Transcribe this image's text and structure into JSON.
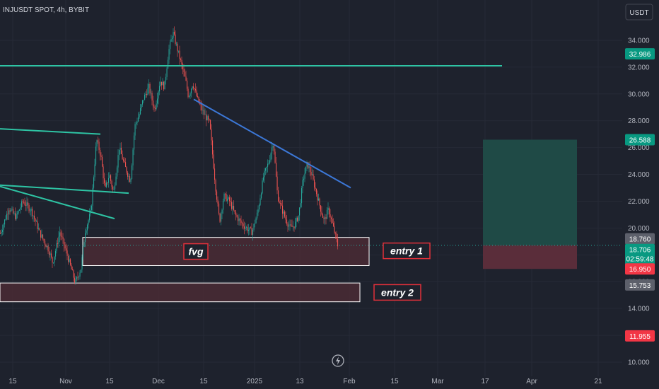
{
  "header": {
    "symbol_title": "INJUSDT SPOT, 4h, BYBIT",
    "currency_button": "USDT"
  },
  "colors": {
    "background": "#1e222d",
    "up": "#26a69a",
    "down": "#ef5350",
    "teal_line": "#2ec4a4",
    "blue_line": "#3c78d8",
    "zone_fill": "#4a2a35",
    "zone_border": "#ffffff",
    "label_border": "#e0303a",
    "profit_fill": "#1f4a46",
    "loss_fill": "#5a2d3a",
    "last_price": "#26a69a",
    "badge_green": "#089981",
    "badge_red": "#f23645",
    "badge_gray": "#5d606b"
  },
  "chart_data": {
    "type": "candlestick",
    "title": "INJUSDT SPOT, 4h, BYBIT",
    "ylim": [
      10,
      35.8
    ],
    "xlim": [
      0,
      932
    ],
    "y_ticks": [
      "34.000",
      "32.000",
      "30.000",
      "28.000",
      "26.000",
      "24.000",
      "22.000",
      "20.000",
      "18.000",
      "16.000",
      "14.000",
      "12.000",
      "10.000"
    ],
    "y_tick_values": [
      34,
      32,
      30,
      28,
      26,
      24,
      22,
      20,
      18,
      16,
      14,
      12,
      10
    ],
    "x_ticks": [
      {
        "label": "15",
        "x": 18
      },
      {
        "label": "Nov",
        "x": 93
      },
      {
        "label": "15",
        "x": 155
      },
      {
        "label": "Dec",
        "x": 224
      },
      {
        "label": "15",
        "x": 288
      },
      {
        "label": "2025",
        "x": 360
      },
      {
        "label": "13",
        "x": 424
      },
      {
        "label": "Feb",
        "x": 494
      },
      {
        "label": "15",
        "x": 558
      },
      {
        "label": "Mar",
        "x": 619
      },
      {
        "label": "17",
        "x": 686
      },
      {
        "label": "Apr",
        "x": 752
      },
      {
        "label": "21",
        "x": 846
      }
    ],
    "price_path": [
      [
        0,
        19.6
      ],
      [
        12,
        21.5
      ],
      [
        22,
        20.8
      ],
      [
        32,
        22.0
      ],
      [
        44,
        21.3
      ],
      [
        56,
        19.6
      ],
      [
        68,
        18.4
      ],
      [
        74,
        17.4
      ],
      [
        84,
        19.7
      ],
      [
        96,
        17.7
      ],
      [
        106,
        15.9
      ],
      [
        114,
        17.0
      ],
      [
        120,
        19.8
      ],
      [
        128,
        21.2
      ],
      [
        136,
        26.6
      ],
      [
        142,
        25.4
      ],
      [
        148,
        22.8
      ],
      [
        154,
        24.0
      ],
      [
        160,
        22.6
      ],
      [
        168,
        26.0
      ],
      [
        176,
        24.6
      ],
      [
        184,
        23.5
      ],
      [
        190,
        27.6
      ],
      [
        196,
        28.4
      ],
      [
        202,
        29.6
      ],
      [
        210,
        30.5
      ],
      [
        218,
        28.8
      ],
      [
        226,
        31.0
      ],
      [
        232,
        30.5
      ],
      [
        238,
        33.2
      ],
      [
        244,
        34.6
      ],
      [
        250,
        33.4
      ],
      [
        256,
        32.2
      ],
      [
        262,
        31.0
      ],
      [
        266,
        29.8
      ],
      [
        272,
        30.8
      ],
      [
        280,
        29.4
      ],
      [
        288,
        28.5
      ],
      [
        296,
        27.8
      ],
      [
        304,
        23.2
      ],
      [
        310,
        20.5
      ],
      [
        316,
        22.4
      ],
      [
        324,
        22.0
      ],
      [
        332,
        21.0
      ],
      [
        340,
        20.4
      ],
      [
        348,
        20.0
      ],
      [
        356,
        19.7
      ],
      [
        364,
        21.2
      ],
      [
        372,
        23.8
      ],
      [
        380,
        25.0
      ],
      [
        386,
        26.5
      ],
      [
        392,
        22.4
      ],
      [
        398,
        21.4
      ],
      [
        404,
        20.6
      ],
      [
        410,
        20.0
      ],
      [
        416,
        20.2
      ],
      [
        422,
        21.0
      ],
      [
        428,
        23.6
      ],
      [
        434,
        24.8
      ],
      [
        440,
        24.0
      ],
      [
        446,
        22.8
      ],
      [
        452,
        21.6
      ],
      [
        458,
        20.5
      ],
      [
        464,
        21.4
      ],
      [
        470,
        20.2
      ],
      [
        474,
        19.4
      ],
      [
        477,
        18.7
      ]
    ],
    "lines": [
      {
        "name": "resistance-upper",
        "points": [
          [
            0,
            32.1
          ],
          [
            710,
            32.1
          ]
        ],
        "color": "teal"
      },
      {
        "name": "teal-left-1",
        "points": [
          [
            0,
            27.4
          ],
          [
            142,
            27.0
          ]
        ],
        "color": "teal"
      },
      {
        "name": "teal-left-2",
        "points": [
          [
            0,
            23.2
          ],
          [
            182,
            22.6
          ]
        ],
        "color": "teal"
      },
      {
        "name": "teal-left-3",
        "points": [
          [
            0,
            23.1
          ],
          [
            162,
            20.7
          ]
        ],
        "color": "teal"
      },
      {
        "name": "descending-trendline",
        "points": [
          [
            274,
            29.6
          ],
          [
            496,
            23.0
          ]
        ],
        "color": "blue"
      }
    ],
    "zones": [
      {
        "name": "fvg-zone",
        "x1": 117,
        "x2": 522,
        "y_top": 19.3,
        "y_bottom": 17.2,
        "label": "fvg",
        "label_x": 277
      },
      {
        "name": "entry1-label-zone",
        "label": "entry 1",
        "label_x": 575,
        "label_y": 18.3
      },
      {
        "name": "entry2-zone",
        "x1": 0,
        "x2": 509,
        "y_top": 15.9,
        "y_bottom": 14.5,
        "label": "entry 2",
        "label_x": 562
      }
    ],
    "position_tool": {
      "x1": 683,
      "x2": 816,
      "target": 26.588,
      "entry": 18.706,
      "stop": 16.95
    },
    "last_price": 18.706,
    "price_badges": [
      {
        "value": "32.986",
        "y": 32.986,
        "color": "green"
      },
      {
        "value": "26.588",
        "y": 26.588,
        "color": "green"
      },
      {
        "value": "18.760",
        "y": 19.2,
        "color": "gray"
      },
      {
        "value": "18.706",
        "sub": "02:59:48",
        "y": 18.4,
        "color": "green"
      },
      {
        "value": "16.950",
        "y": 16.95,
        "color": "red"
      },
      {
        "value": "15.753",
        "y": 15.753,
        "color": "gray"
      },
      {
        "value": "11.955",
        "y": 11.955,
        "color": "red"
      }
    ]
  }
}
